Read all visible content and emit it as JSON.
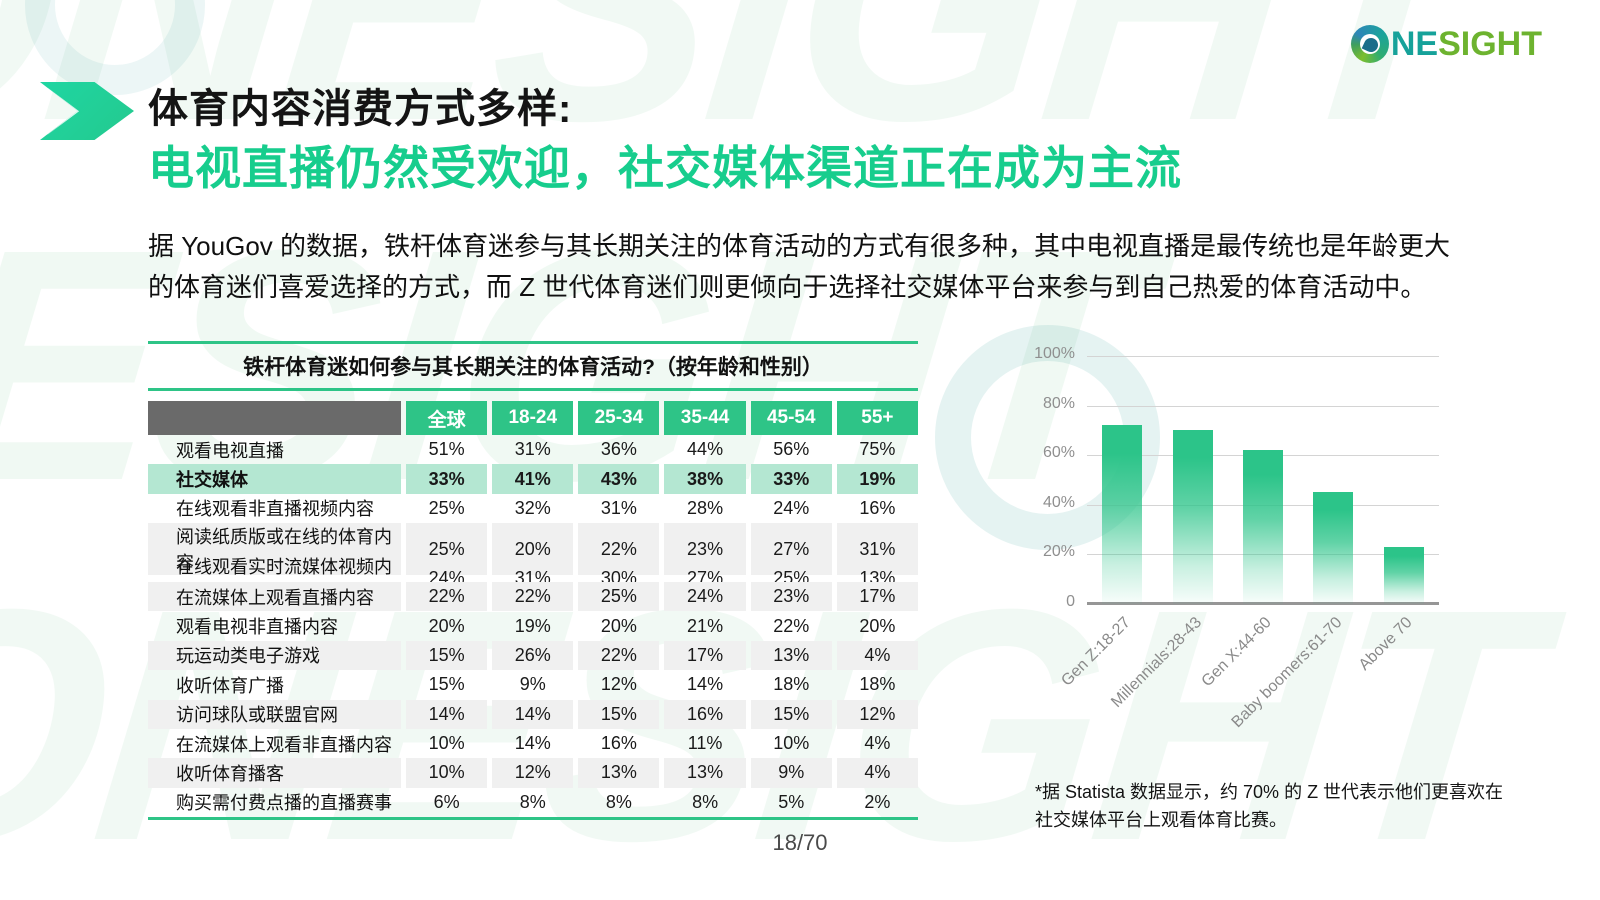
{
  "logo": {
    "one": "NE",
    "sight": "SIGHT"
  },
  "watermark": {
    "text": "ONESIGHT"
  },
  "header": {
    "title_line1": "体育内容消费方式多样:",
    "title_line2": "电视直播仍然受欢迎，社交媒体渠道正在成为主流"
  },
  "intro": {
    "text": "据 YouGov 的数据，铁杆体育迷参与其长期关注的体育活动的方式有很多种，其中电视直播是最传统也是年龄更大的体育迷们喜爱选择的方式，而 Z 世代体育迷们则更倾向于选择社交媒体平台来参与到自己热爱的体育活动中。"
  },
  "table": {
    "title": "铁杆体育迷如何参与其长期关注的体育活动?（按年龄和性别）",
    "columns": [
      "全球",
      "18-24",
      "25-34",
      "35-44",
      "45-54",
      "55+"
    ],
    "rows": [
      {
        "label": "观看电视直播",
        "values": [
          "51%",
          "31%",
          "36%",
          "44%",
          "56%",
          "75%"
        ],
        "highlight": false
      },
      {
        "label": "社交媒体",
        "values": [
          "33%",
          "41%",
          "43%",
          "38%",
          "33%",
          "19%"
        ],
        "highlight": true
      },
      {
        "label": "在线观看非直播视频内容",
        "values": [
          "25%",
          "32%",
          "31%",
          "28%",
          "24%",
          "16%"
        ],
        "highlight": false
      },
      {
        "label": "阅读纸质版或在线的体育内容",
        "values": [
          "25%",
          "20%",
          "22%",
          "23%",
          "27%",
          "31%"
        ],
        "highlight": false
      },
      {
        "label": "在线观看实时流媒体视频内容",
        "values": [
          "24%",
          "31%",
          "30%",
          "27%",
          "25%",
          "13%"
        ],
        "highlight": false
      },
      {
        "label": "在流媒体上观看直播内容",
        "values": [
          "22%",
          "22%",
          "25%",
          "24%",
          "23%",
          "17%"
        ],
        "highlight": false
      },
      {
        "label": "观看电视非直播内容",
        "values": [
          "20%",
          "19%",
          "20%",
          "21%",
          "22%",
          "20%"
        ],
        "highlight": false
      },
      {
        "label": "玩运动类电子游戏",
        "values": [
          "15%",
          "26%",
          "22%",
          "17%",
          "13%",
          "4%"
        ],
        "highlight": false
      },
      {
        "label": "收听体育广播",
        "values": [
          "15%",
          "9%",
          "12%",
          "14%",
          "18%",
          "18%"
        ],
        "highlight": false
      },
      {
        "label": "访问球队或联盟官网",
        "values": [
          "14%",
          "14%",
          "15%",
          "16%",
          "15%",
          "12%"
        ],
        "highlight": false
      },
      {
        "label": "在流媒体上观看非直播内容",
        "values": [
          "10%",
          "14%",
          "16%",
          "11%",
          "10%",
          "4%"
        ],
        "highlight": false
      },
      {
        "label": "收听体育播客",
        "values": [
          "10%",
          "12%",
          "13%",
          "13%",
          "9%",
          "4%"
        ],
        "highlight": false
      },
      {
        "label": "购买需付费点播的直播赛事",
        "values": [
          "6%",
          "8%",
          "8%",
          "8%",
          "5%",
          "2%"
        ],
        "highlight": false
      }
    ]
  },
  "chart_data": {
    "type": "bar",
    "categories": [
      "Gen Z:18-27",
      "Millennials:28-43",
      "Gen X:44-60",
      "Baby boomers:61-70",
      "Above 70"
    ],
    "values": [
      72,
      70,
      62,
      45,
      23
    ],
    "unit": "%",
    "title": "",
    "xlabel": "",
    "ylabel": "",
    "ylim": [
      0,
      100
    ],
    "yticks": [
      "100%",
      "80%",
      "60%",
      "40%",
      "20%",
      "0"
    ],
    "grid": true,
    "legend": false,
    "bar_color": "#2ec487"
  },
  "footnote": {
    "text": "*据 Statista 数据显示，约 70% 的 Z 世代表示他们更喜欢在社交媒体平台上观看体育比赛。"
  },
  "footer": {
    "page": "18/70"
  },
  "colors": {
    "accent": "#2ec487",
    "title_green": "#17cd8d",
    "header_gray": "#6a6a6a",
    "highlight_row": "#b4e7d2",
    "alt_row": "#f0f0f0",
    "logo_teal": "#16a29a",
    "logo_green": "#6db32f"
  }
}
